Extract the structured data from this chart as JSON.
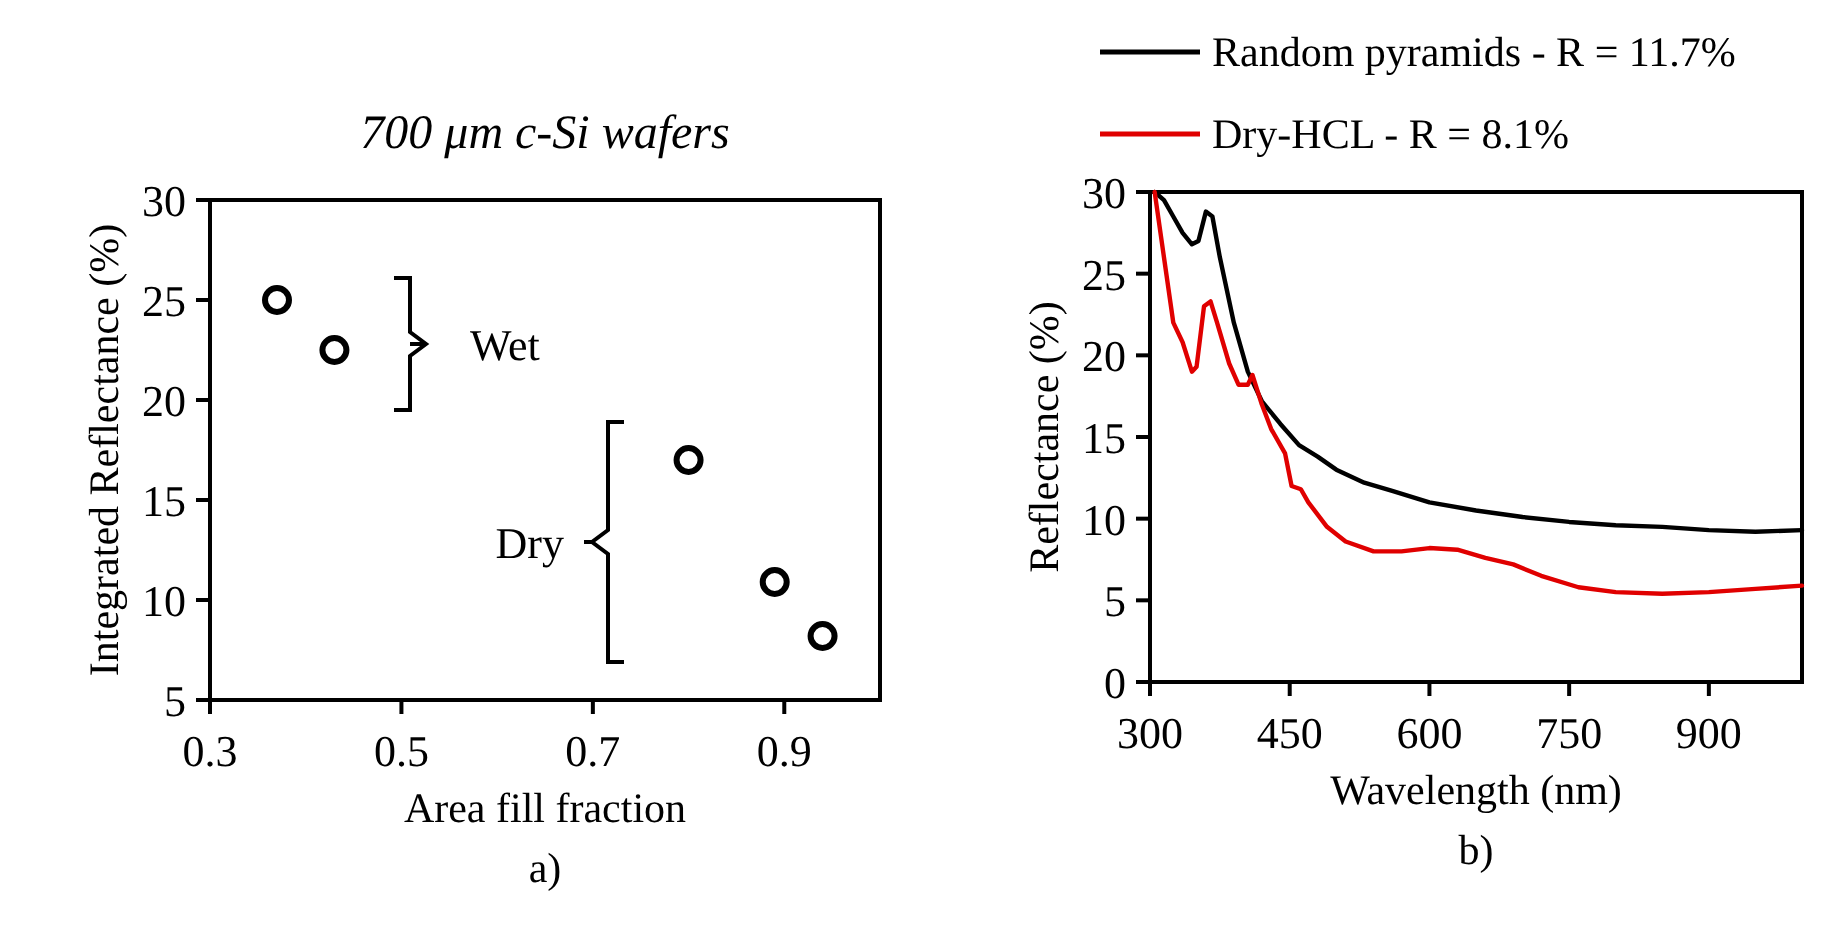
{
  "chart_data": [
    {
      "type": "scatter",
      "title": "700 μm c-Si wafers",
      "xlabel": "Area fill fraction",
      "ylabel": "Integrated Reflectance (%)",
      "x": [
        0.37,
        0.43,
        0.8,
        0.89,
        0.94
      ],
      "series": [
        {
          "color": "#000000",
          "values": [
            25,
            22.5,
            17,
            10.9,
            8.2
          ]
        }
      ],
      "xlim": [
        0.3,
        1.0
      ],
      "xticks": [
        0.3,
        0.5,
        0.7,
        0.9
      ],
      "ylim": [
        5,
        30
      ],
      "yticks": [
        5,
        10,
        15,
        20,
        25,
        30
      ],
      "marker": "circle",
      "grid": false,
      "legend": false,
      "annotations": [
        "Wet",
        "Dry",
        "a)"
      ]
    },
    {
      "type": "line",
      "xlabel": "Wavelength (nm)",
      "ylabel": "Reflectance (%)",
      "xlim": [
        300,
        1000
      ],
      "xticks": [
        300,
        450,
        600,
        750,
        900
      ],
      "ylim": [
        0,
        30
      ],
      "yticks": [
        0,
        5,
        10,
        15,
        20,
        25,
        30
      ],
      "grid": false,
      "legend": "top",
      "line_style": "solid",
      "marker": "none",
      "series": [
        {
          "name": "Random pyramids - R = 11.7%",
          "color": "#000000",
          "x": [
            305,
            315,
            325,
            335,
            345,
            352,
            360,
            367,
            375,
            390,
            405,
            420,
            440,
            460,
            480,
            500,
            530,
            560,
            600,
            650,
            700,
            750,
            800,
            850,
            900,
            950,
            1000
          ],
          "values": [
            30,
            29.5,
            28.5,
            27.5,
            26.8,
            27,
            28.8,
            28.5,
            26,
            22,
            19,
            17.2,
            15.8,
            14.5,
            13.8,
            13,
            12.2,
            11.7,
            11,
            10.5,
            10.1,
            9.8,
            9.6,
            9.5,
            9.3,
            9.2,
            9.3
          ]
        },
        {
          "name": "Dry-HCL - R = 8.1%",
          "color": "#e00000",
          "x": [
            305,
            315,
            325,
            335,
            345,
            350,
            358,
            365,
            372,
            385,
            395,
            405,
            410,
            420,
            430,
            445,
            452,
            462,
            470,
            490,
            510,
            540,
            570,
            600,
            630,
            660,
            690,
            720,
            760,
            800,
            850,
            900,
            950,
            1000
          ],
          "values": [
            30,
            26,
            22,
            20.8,
            19,
            19.3,
            23,
            23.3,
            22,
            19.5,
            18.2,
            18.2,
            18.8,
            17,
            15.5,
            14,
            12,
            11.8,
            11,
            9.5,
            8.6,
            8,
            8,
            8.2,
            8.1,
            7.6,
            7.2,
            6.5,
            5.8,
            5.5,
            5.4,
            5.5,
            5.7,
            5.9
          ]
        }
      ],
      "annotations": [
        "b)"
      ]
    }
  ]
}
